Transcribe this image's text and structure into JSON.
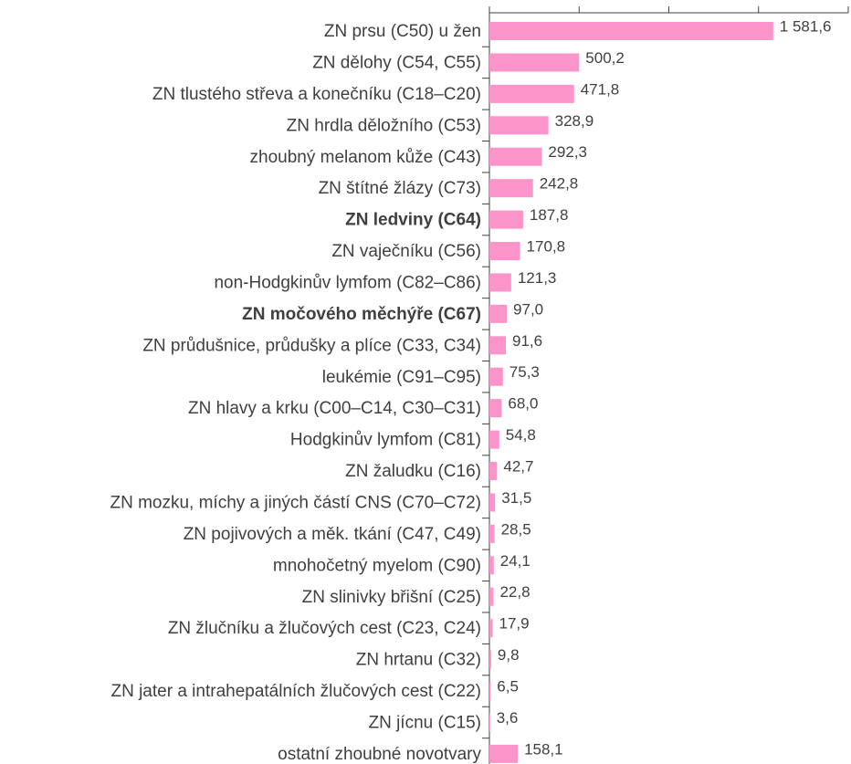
{
  "chart_data": {
    "type": "bar",
    "orientation": "horizontal",
    "categories": [
      "ZN prsu (C50) u žen",
      "ZN dělohy (C54, C55)",
      "ZN tlustého střeva a konečníku (C18–C20)",
      "ZN hrdla děložního (C53)",
      "zhoubný melanom kůže (C43)",
      "ZN štítné žlázy (C73)",
      "ZN ledviny (C64)",
      "ZN vaječníku (C56)",
      "non-Hodgkinův lymfom (C82–C86)",
      "ZN močového měchýře (C67)",
      "ZN průdušnice, průdušky a plíce (C33, C34)",
      "leukémie (C91–C95)",
      "ZN hlavy a krku (C00–C14, C30–C31)",
      "Hodgkinův lymfom (C81)",
      "ZN žaludku (C16)",
      "ZN mozku, míchy a jiných částí CNS (C70–C72)",
      "ZN pojivových a měk. tkání (C47, C49)",
      "mnohočetný myelom (C90)",
      "ZN slinivky břišní (C25)",
      "ZN žlučníku a žlučových cest (C23, C24)",
      "ZN hrtanu (C32)",
      "ZN jater a intrahepatálních žlučových cest (C22)",
      "ZN jícnu (C15)",
      "ostatní zhoubné novotvary"
    ],
    "values": [
      1581.6,
      500.2,
      471.8,
      328.9,
      292.3,
      242.8,
      187.8,
      170.8,
      121.3,
      97.0,
      91.6,
      75.3,
      68.0,
      54.8,
      42.7,
      31.5,
      28.5,
      24.1,
      22.8,
      17.9,
      9.8,
      6.5,
      3.6,
      158.1
    ],
    "value_labels": [
      "1 581,6",
      "500,2",
      "471,8",
      "328,9",
      "292,3",
      "242,8",
      "187,8",
      "170,8",
      "121,3",
      "97,0",
      "91,6",
      "75,3",
      "68,0",
      "54,8",
      "42,7",
      "31,5",
      "28,5",
      "24,1",
      "22,8",
      "17,9",
      "9,8",
      "6,5",
      "3,6",
      "158,1"
    ],
    "bold": [
      6,
      9
    ],
    "color": "#fb94c8",
    "xlim": [
      0,
      2000
    ],
    "xticks": [
      0,
      500,
      1000,
      1500,
      2000
    ]
  }
}
